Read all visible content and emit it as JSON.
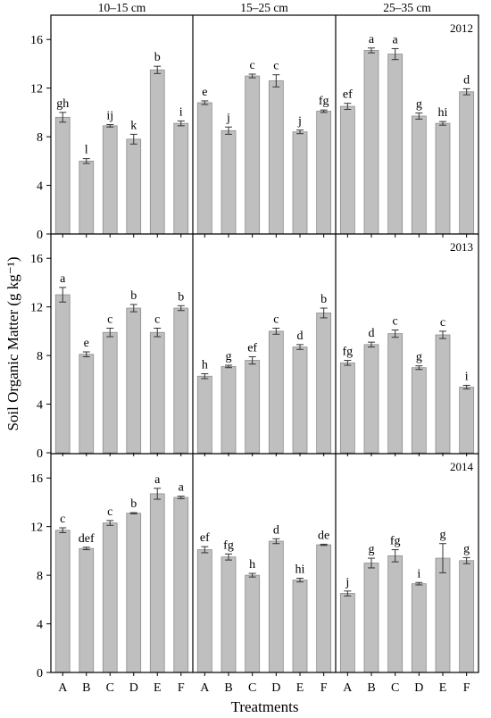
{
  "chart_data": {
    "type": "bar",
    "ylabel": "Soil Organic Matter (g kg⁻¹)",
    "xlabel": "Treatments",
    "categories": [
      "A",
      "B",
      "C",
      "D",
      "E",
      "F"
    ],
    "depths": [
      "10–15 cm",
      "15–25 cm",
      "25–35 cm"
    ],
    "years": [
      "2012",
      "2013",
      "2014"
    ],
    "ylim": [
      0,
      18
    ],
    "yticks": [
      "0",
      "4",
      "8",
      "12",
      "16"
    ],
    "ytick_values": [
      0,
      4,
      8,
      12,
      16
    ],
    "bar_color": "#bfbfbf",
    "panels": [
      [
        {
          "values": [
            9.6,
            6.0,
            8.9,
            7.8,
            13.5,
            9.1
          ],
          "errors": [
            0.4,
            0.2,
            0.1,
            0.4,
            0.3,
            0.2
          ],
          "letters": [
            "gh",
            "l",
            "ij",
            "k",
            "b",
            "i"
          ]
        },
        {
          "values": [
            10.8,
            8.5,
            13.0,
            12.6,
            8.4,
            10.1
          ],
          "errors": [
            0.15,
            0.3,
            0.15,
            0.5,
            0.15,
            0.1
          ],
          "letters": [
            "e",
            "j",
            "c",
            "c",
            "j",
            "fg"
          ]
        },
        {
          "values": [
            10.5,
            15.1,
            14.8,
            9.7,
            9.1,
            11.7
          ],
          "errors": [
            0.25,
            0.2,
            0.45,
            0.25,
            0.15,
            0.25
          ],
          "letters": [
            "ef",
            "a",
            "a",
            "g",
            "hi",
            "d"
          ]
        }
      ],
      [
        {
          "values": [
            13.0,
            8.1,
            9.9,
            11.9,
            9.9,
            11.9
          ],
          "errors": [
            0.6,
            0.2,
            0.35,
            0.3,
            0.35,
            0.2
          ],
          "letters": [
            "a",
            "e",
            "c",
            "b",
            "c",
            "b"
          ]
        },
        {
          "values": [
            6.3,
            7.1,
            7.6,
            10.0,
            8.7,
            11.5
          ],
          "errors": [
            0.2,
            0.1,
            0.3,
            0.25,
            0.2,
            0.4
          ],
          "letters": [
            "h",
            "g",
            "ef",
            "c",
            "d",
            "b"
          ]
        },
        {
          "values": [
            7.4,
            8.9,
            9.8,
            7.0,
            9.7,
            5.4
          ],
          "errors": [
            0.2,
            0.2,
            0.3,
            0.15,
            0.3,
            0.15
          ],
          "letters": [
            "fg",
            "d",
            "c",
            "g",
            "c",
            "i"
          ]
        }
      ],
      [
        {
          "values": [
            11.7,
            10.2,
            12.3,
            13.1,
            14.7,
            14.4
          ],
          "errors": [
            0.2,
            0.1,
            0.2,
            0.05,
            0.45,
            0.1
          ],
          "letters": [
            "c",
            "def",
            "c",
            "b",
            "a",
            "a"
          ]
        },
        {
          "values": [
            10.1,
            9.5,
            8.0,
            10.8,
            7.6,
            10.5
          ],
          "errors": [
            0.25,
            0.25,
            0.15,
            0.2,
            0.15,
            0.05
          ],
          "letters": [
            "ef",
            "fg",
            "h",
            "d",
            "hi",
            "de"
          ]
        },
        {
          "values": [
            6.5,
            9.0,
            9.6,
            7.3,
            9.4,
            9.2
          ],
          "errors": [
            0.2,
            0.4,
            0.5,
            0.1,
            1.2,
            0.25
          ],
          "letters": [
            "j",
            "g",
            "fg",
            "i",
            "g",
            "g"
          ]
        }
      ]
    ]
  }
}
